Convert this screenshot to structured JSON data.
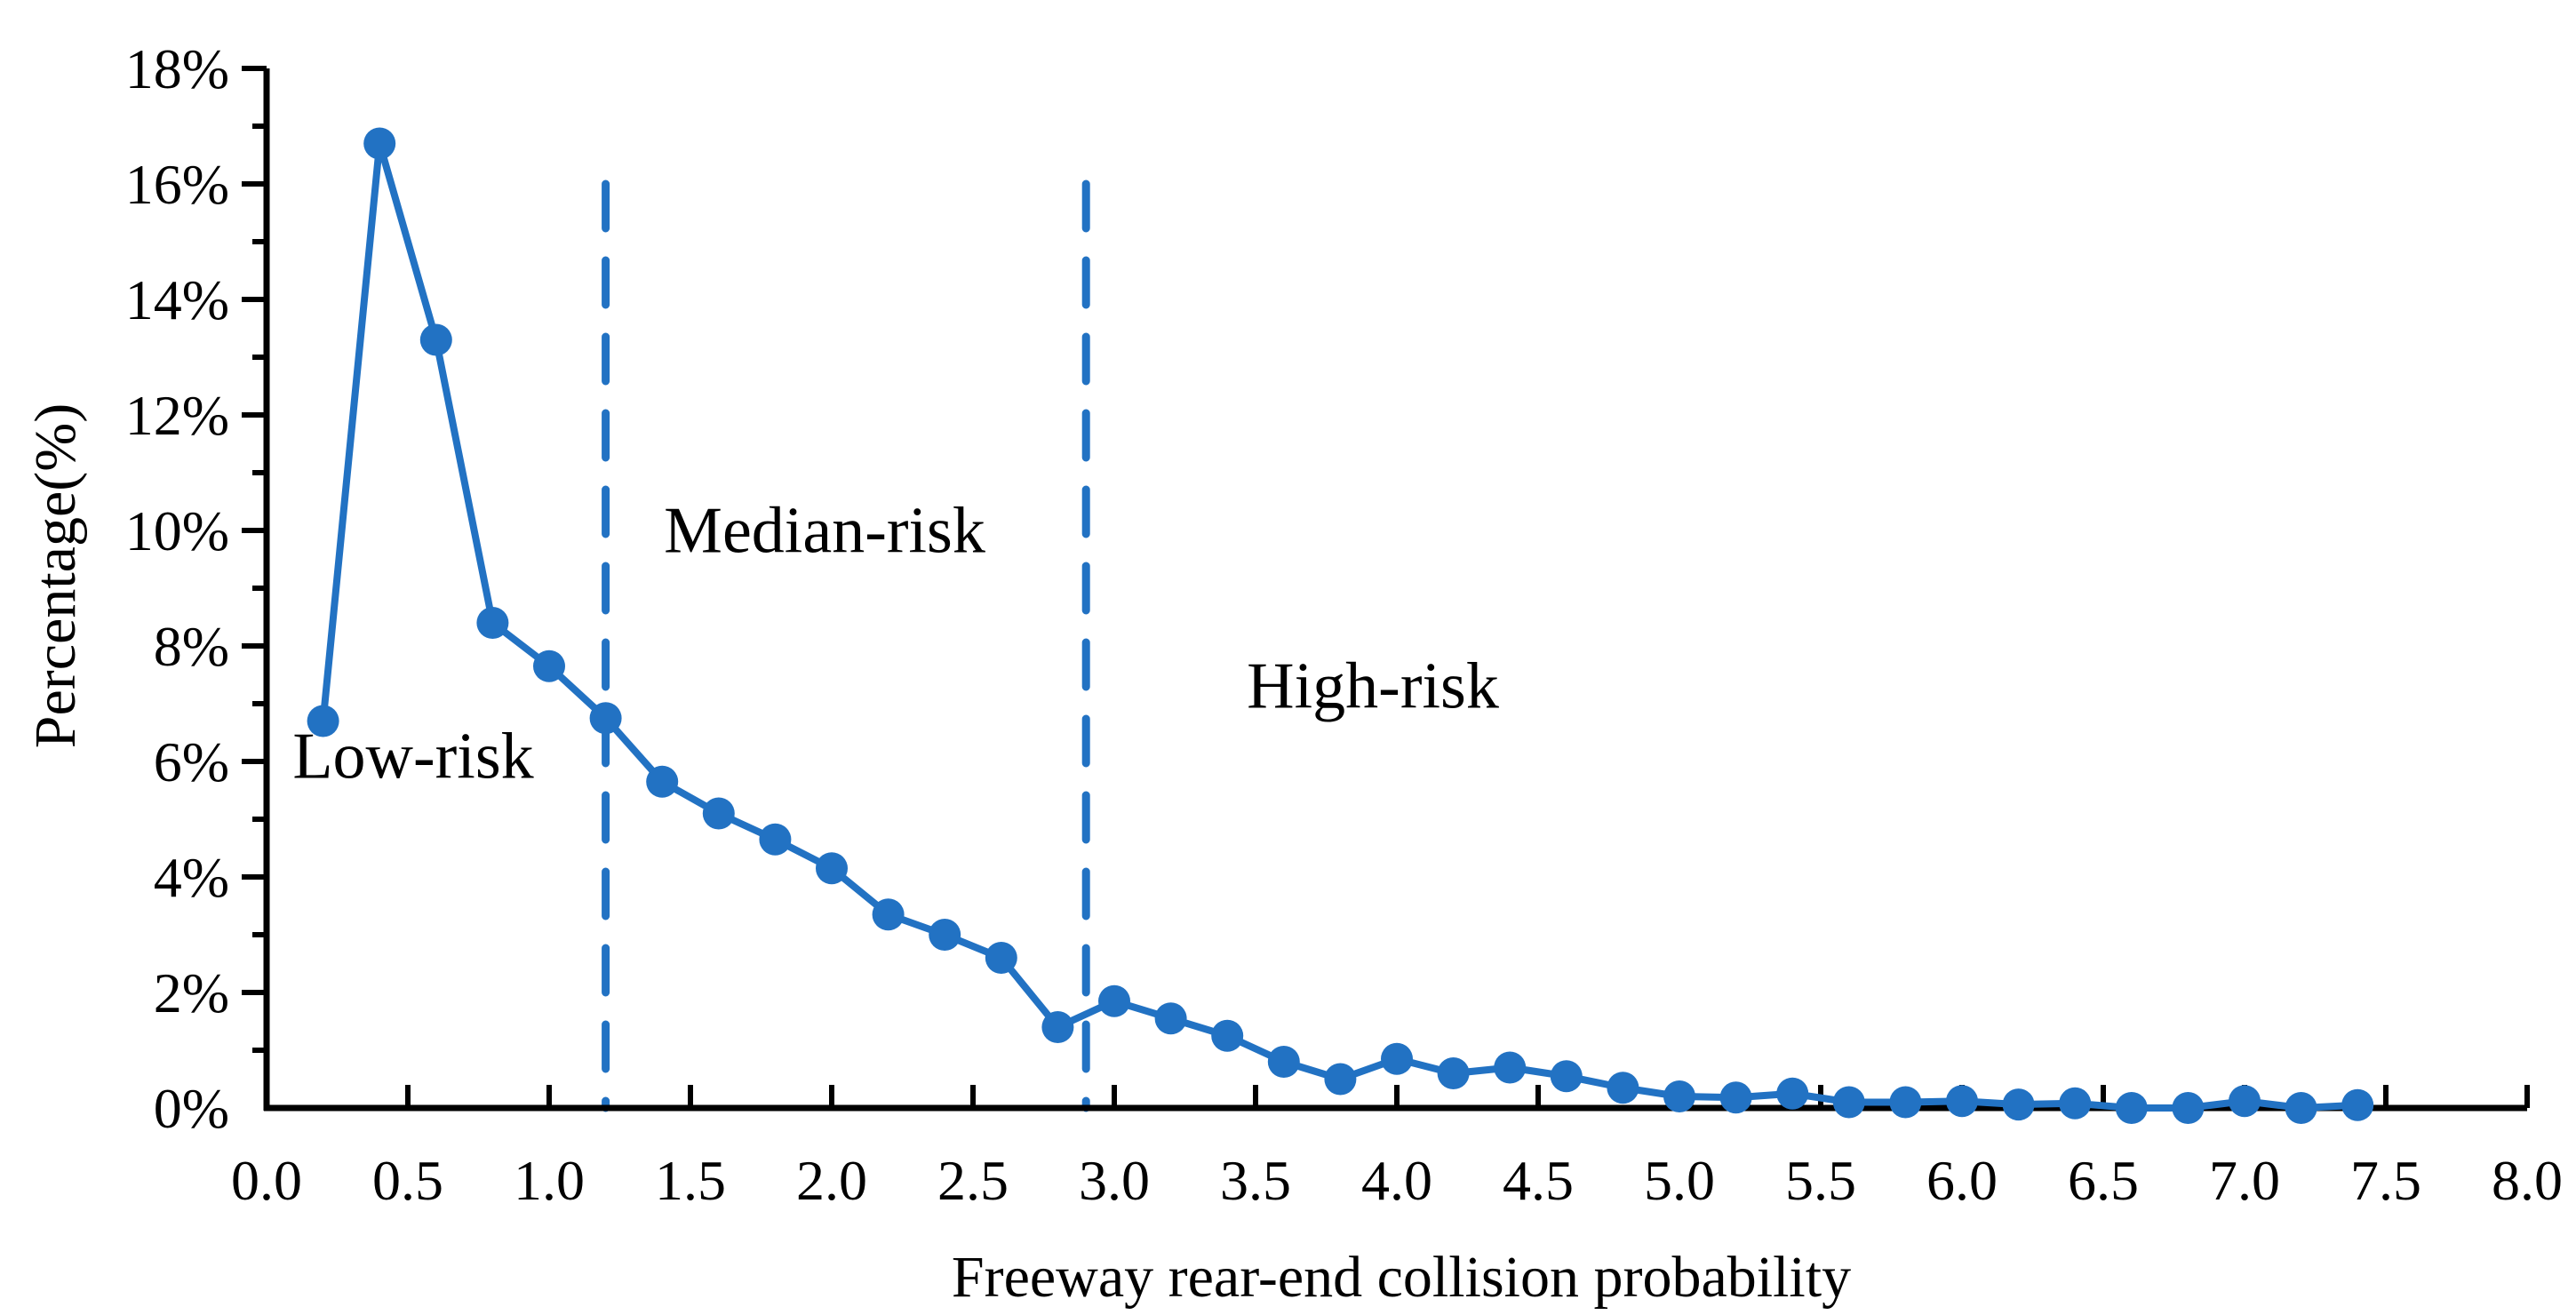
{
  "figure": {
    "y_axis_title": "Percentage(%)",
    "x_axis_title": "Freeway rear-end collision probability"
  },
  "chart_data": {
    "type": "line",
    "title": "",
    "xlabel": "Freeway rear-end collision probability",
    "ylabel": "Percentage(%)",
    "x": [
      0.2,
      0.4,
      0.6,
      0.8,
      1.0,
      1.2,
      1.4,
      1.6,
      1.8,
      2.0,
      2.2,
      2.4,
      2.6,
      2.8,
      3.0,
      3.2,
      3.4,
      3.6,
      3.8,
      4.0,
      4.2,
      4.4,
      4.6,
      4.8,
      5.0,
      5.2,
      5.4,
      5.6,
      5.8,
      6.0,
      6.2,
      6.4,
      6.6,
      6.8,
      7.0,
      7.2,
      7.4
    ],
    "y_percent": [
      6.7,
      16.7,
      13.3,
      8.4,
      7.65,
      6.75,
      5.65,
      5.1,
      4.65,
      4.15,
      3.35,
      3.0,
      2.6,
      1.4,
      1.85,
      1.55,
      1.25,
      0.8,
      0.5,
      0.85,
      0.6,
      0.7,
      0.55,
      0.35,
      0.2,
      0.18,
      0.25,
      0.1,
      0.1,
      0.12,
      0.06,
      0.08,
      0.0,
      0.0,
      0.12,
      0.0,
      0.05
    ],
    "xlim": [
      0.0,
      8.0
    ],
    "ylim_percent": [
      0,
      18
    ],
    "x_tick_labels": [
      "0.0",
      "0.5",
      "1.0",
      "1.5",
      "2.0",
      "2.5",
      "3.0",
      "3.5",
      "4.0",
      "4.5",
      "5.0",
      "5.5",
      "6.0",
      "6.5",
      "7.0",
      "7.5",
      "8.0"
    ],
    "y_tick_labels": [
      "0%",
      "2%",
      "4%",
      "6%",
      "8%",
      "10%",
      "12%",
      "14%",
      "16%",
      "18%"
    ],
    "y_minor_step_percent": 1,
    "grid": false,
    "legend": null,
    "thresholds": {
      "x_values": [
        1.2,
        2.9
      ],
      "top_percent": 16,
      "style": "dashed"
    },
    "annotations": [
      {
        "text": "Low-risk",
        "x": 0.52,
        "y_percent": 6.1
      },
      {
        "text": "Median-risk",
        "x": 1.98,
        "y_percent": 10.0
      },
      {
        "text": "High-risk",
        "x": 3.92,
        "y_percent": 7.3
      }
    ],
    "line_color": "#2272C3",
    "axis_color": "#000000"
  }
}
